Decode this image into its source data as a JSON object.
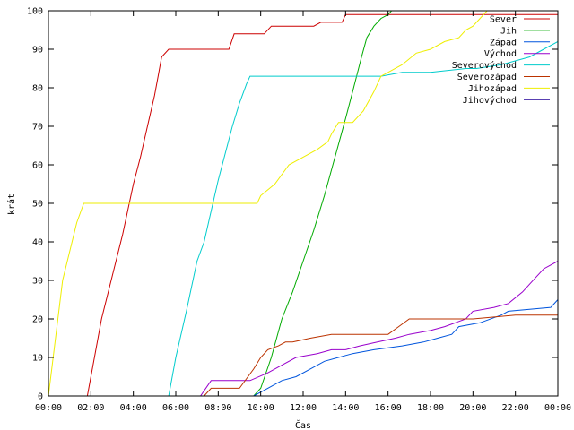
{
  "chart_data": {
    "type": "line",
    "title": "",
    "xlabel": "Čas",
    "ylabel": "krát",
    "xlim": [
      "00:00",
      "24:00"
    ],
    "ylim": [
      0,
      100
    ],
    "xticks": [
      "00:00",
      "02:00",
      "04:00",
      "06:00",
      "08:00",
      "10:00",
      "12:00",
      "14:00",
      "16:00",
      "18:00",
      "20:00",
      "22:00",
      "00:00"
    ],
    "yticks": [
      "0",
      "10",
      "20",
      "30",
      "40",
      "50",
      "60",
      "70",
      "80",
      "90",
      "100"
    ],
    "grid": false,
    "legend_position": "top-right",
    "series": [
      {
        "name": "Sever",
        "color": "#cc0000",
        "x": [
          "01:50",
          "02:30",
          "03:00",
          "03:30",
          "04:00",
          "04:20",
          "04:40",
          "05:00",
          "05:10",
          "05:20",
          "05:40",
          "08:30",
          "08:45",
          "10:10",
          "10:30",
          "12:30",
          "12:50",
          "13:50",
          "14:00",
          "24:00"
        ],
        "y": [
          0,
          20,
          31,
          42,
          55,
          62,
          70,
          78,
          83,
          88,
          90,
          90,
          94,
          94,
          96,
          96,
          97,
          97,
          99,
          99
        ]
      },
      {
        "name": "Jih",
        "color": "#00aa00",
        "x": [
          "09:40",
          "10:00",
          "10:30",
          "11:00",
          "11:30",
          "12:00",
          "12:30",
          "13:00",
          "13:30",
          "14:00",
          "14:20",
          "14:45",
          "15:00",
          "15:20",
          "15:40",
          "16:00",
          "16:10",
          "24:00"
        ],
        "y": [
          0,
          2,
          10,
          20,
          27,
          35,
          43,
          52,
          62,
          72,
          79,
          88,
          93,
          96,
          98,
          99,
          100,
          100
        ]
      },
      {
        "name": "Západ",
        "color": "#0055dd",
        "x": [
          "09:40",
          "10:20",
          "11:00",
          "11:40",
          "12:20",
          "13:00",
          "13:40",
          "14:20",
          "15:20",
          "16:40",
          "17:40",
          "18:20",
          "19:00",
          "19:20",
          "20:20",
          "21:20",
          "21:40",
          "23:40",
          "24:00"
        ],
        "y": [
          0,
          2,
          4,
          5,
          7,
          9,
          10,
          11,
          12,
          13,
          14,
          15,
          16,
          18,
          19,
          21,
          22,
          23,
          25
        ]
      },
      {
        "name": "Východ",
        "color": "#9900cc",
        "x": [
          "07:10",
          "07:40",
          "09:30",
          "10:20",
          "11:00",
          "11:40",
          "12:40",
          "13:20",
          "14:00",
          "14:40",
          "15:30",
          "16:20",
          "17:00",
          "18:00",
          "18:40",
          "19:40",
          "20:00",
          "21:00",
          "21:40",
          "22:20",
          "22:40",
          "23:00",
          "23:20",
          "24:00"
        ],
        "y": [
          0,
          4,
          4,
          6,
          8,
          10,
          11,
          12,
          12,
          13,
          14,
          15,
          16,
          17,
          18,
          20,
          22,
          23,
          24,
          27,
          29,
          31,
          33,
          35
        ]
      },
      {
        "name": "Severovýchod",
        "color": "#00cccc",
        "x": [
          "05:40",
          "06:00",
          "06:30",
          "07:00",
          "07:20",
          "07:40",
          "08:00",
          "08:20",
          "08:40",
          "09:00",
          "09:20",
          "09:30",
          "14:00",
          "15:40",
          "16:40",
          "18:00",
          "19:40",
          "20:10",
          "21:20",
          "22:40",
          "23:20",
          "24:00"
        ],
        "y": [
          0,
          10,
          22,
          35,
          40,
          48,
          56,
          63,
          70,
          76,
          81,
          83,
          83,
          83,
          84,
          84,
          85,
          85,
          86,
          88,
          90,
          92
        ]
      },
      {
        "name": "Severozápad",
        "color": "#bb3300",
        "x": [
          "06:10",
          "07:20",
          "07:40",
          "08:40",
          "08:50",
          "09:00",
          "09:40",
          "10:00",
          "10:20",
          "10:50",
          "11:10",
          "11:30",
          "12:20",
          "13:20",
          "16:00",
          "16:30",
          "17:00",
          "18:20",
          "20:00",
          "22:00",
          "24:00"
        ],
        "y": [
          0,
          0,
          2,
          2,
          2,
          2,
          7,
          10,
          12,
          13,
          14,
          14,
          15,
          16,
          16,
          18,
          20,
          20,
          20,
          21,
          21
        ]
      },
      {
        "name": "Jihozápad",
        "color": "#eeee00",
        "x": [
          "00:00",
          "00:40",
          "01:20",
          "01:40",
          "09:50",
          "10:00",
          "10:40",
          "11:20",
          "12:00",
          "12:40",
          "13:10",
          "13:20",
          "13:40",
          "14:20",
          "14:50",
          "15:20",
          "15:40",
          "16:40",
          "17:20",
          "18:00",
          "18:40",
          "19:20",
          "19:40",
          "20:00",
          "20:20",
          "20:40",
          "24:00"
        ],
        "y": [
          0,
          30,
          45,
          50,
          50,
          52,
          55,
          60,
          62,
          64,
          66,
          68,
          71,
          71,
          74,
          79,
          83,
          86,
          89,
          90,
          92,
          93,
          95,
          96,
          98,
          100,
          100
        ]
      },
      {
        "name": "Jihovýchod",
        "color": "#220099",
        "x": [
          "06:50",
          "24:00"
        ],
        "y": [
          0,
          0
        ]
      }
    ]
  }
}
